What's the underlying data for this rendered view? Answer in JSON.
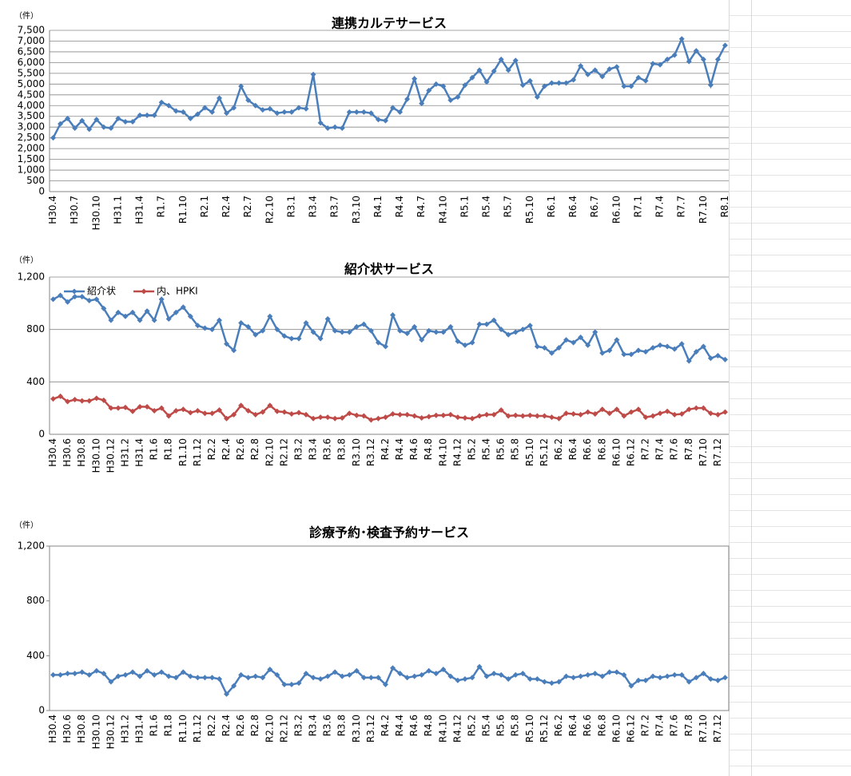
{
  "chart_data": [
    {
      "type": "line",
      "title": "連携カルテサービス",
      "ylabel": "（件）",
      "categories": [
        "H30.4",
        null,
        null,
        "H30.7",
        null,
        null,
        "H30.10",
        null,
        null,
        "H31.1",
        null,
        null,
        "H31.4",
        null,
        null,
        "R1.7",
        null,
        null,
        "R1.10",
        null,
        null,
        "R2.1",
        null,
        null,
        "R2.4",
        null,
        null,
        "R2.7",
        null,
        null,
        "R2.10",
        null,
        null,
        "R3.1",
        null,
        null,
        "R3.4",
        null,
        null,
        "R3.7",
        null,
        null,
        "R3.10",
        null,
        null,
        "R4.1",
        null,
        null,
        "R4.4",
        null,
        null,
        "R4.7",
        null,
        null,
        "R4.10",
        null,
        null,
        "R5.1",
        null,
        null,
        "R5.4",
        null,
        null,
        "R5.7",
        null,
        null,
        "R5.10",
        null,
        null,
        "R6.1",
        null,
        null,
        "R6.4",
        null,
        null,
        "R6.7",
        null,
        null,
        "R6.10",
        null,
        null,
        "R7.1",
        null,
        null,
        "R7.4",
        null,
        null,
        "R7.7",
        null,
        null,
        "R7.10",
        null,
        null,
        "R8.1"
      ],
      "values": [
        2500,
        3150,
        3400,
        2950,
        3300,
        2900,
        3350,
        3000,
        2950,
        3400,
        3250,
        3250,
        3550,
        3550,
        3550,
        4150,
        4000,
        3750,
        3700,
        3400,
        3600,
        3900,
        3700,
        4350,
        3650,
        3900,
        4900,
        4250,
        4000,
        3800,
        3850,
        3650,
        3700,
        3700,
        3900,
        3850,
        5450,
        3200,
        2950,
        3000,
        2950,
        3700,
        3700,
        3700,
        3650,
        3350,
        3300,
        3900,
        3700,
        4300,
        5250,
        4100,
        4700,
        5000,
        4900,
        4250,
        4400,
        4950,
        5300,
        5650,
        5100,
        5600,
        6150,
        5650,
        6100,
        4950,
        5150,
        4400,
        4900,
        5050,
        5050,
        5050,
        5200,
        5850,
        5450,
        5650,
        5350,
        5700,
        5800,
        4900,
        4900,
        5300,
        5150,
        5950,
        5900,
        6150,
        6350,
        7100,
        6050,
        6550,
        6150,
        4950,
        6150,
        6800
      ],
      "color": "#4a7ebb",
      "ylim": [
        0,
        7500
      ],
      "yticks": [
        0,
        500,
        {
          "value": 1000,
          "label": "1,000"
        },
        {
          "value": 1500,
          "label": "1,500"
        },
        {
          "value": 2000,
          "label": "2,000"
        },
        {
          "value": 2500,
          "label": "2,500"
        },
        {
          "value": 3000,
          "label": "3,000"
        },
        {
          "value": 3500,
          "label": "3,500"
        },
        {
          "value": 4000,
          "label": "4,000"
        },
        {
          "value": 4500,
          "label": "4,500"
        },
        {
          "value": 5000,
          "label": "5,000"
        },
        {
          "value": 5500,
          "label": "5,500"
        },
        {
          "value": 6000,
          "label": "6,000"
        },
        {
          "value": 6500,
          "label": "6,500"
        },
        {
          "value": 7000,
          "label": "7,000"
        },
        {
          "value": 7500,
          "label": "7,500"
        }
      ],
      "grid": true
    },
    {
      "type": "line",
      "title": "紹介状サービス",
      "ylabel": "（件）",
      "categories": [
        "H30.4",
        null,
        "H30.6",
        null,
        "H30.8",
        null,
        "H30.10",
        null,
        "H30.12",
        null,
        "H31.2",
        null,
        "H31.4",
        null,
        "R1.6",
        null,
        "R1.8",
        null,
        "R1.10",
        null,
        "R1.12",
        null,
        "R2.2",
        null,
        "R2.4",
        null,
        "R2.6",
        null,
        "R2.8",
        null,
        "R2.10",
        null,
        "R2.12",
        null,
        "R3.2",
        null,
        "R3.4",
        null,
        "R3.6",
        null,
        "R3.8",
        null,
        "R3.10",
        null,
        "R3.12",
        null,
        "R4.2",
        null,
        "R4.4",
        null,
        "R4.6",
        null,
        "R4.8",
        null,
        "R4.10",
        null,
        "R4.12",
        null,
        "R5.2",
        null,
        "R5.4",
        null,
        "R5.6",
        null,
        "R5.8",
        null,
        "R5.10",
        null,
        "R5.12",
        null,
        "R6.2",
        null,
        "R6.4",
        null,
        "R6.6",
        null,
        "R6.8",
        null,
        "R6.10",
        null,
        "R6.12",
        null,
        "R7.2",
        null,
        "R7.4",
        null,
        "R7.6",
        null,
        "R7.8",
        null,
        "R7.10",
        null,
        "R7.12",
        null
      ],
      "series": [
        {
          "name": "紹介状",
          "color": "#4a7ebb",
          "values": [
            1030,
            1060,
            1010,
            1050,
            1050,
            1020,
            1030,
            960,
            870,
            930,
            900,
            930,
            870,
            940,
            870,
            1030,
            880,
            930,
            970,
            900,
            830,
            810,
            800,
            870,
            690,
            640,
            850,
            820,
            760,
            790,
            900,
            800,
            750,
            730,
            730,
            850,
            780,
            730,
            880,
            790,
            780,
            780,
            820,
            840,
            790,
            700,
            670,
            910,
            790,
            770,
            820,
            720,
            790,
            780,
            780,
            820,
            710,
            680,
            700,
            840,
            840,
            870,
            800,
            760,
            780,
            800,
            830,
            670,
            660,
            620,
            660,
            720,
            700,
            740,
            680,
            780,
            620,
            640,
            720,
            610,
            610,
            640,
            630,
            660,
            680,
            670,
            650,
            690,
            560,
            630,
            670,
            580,
            600,
            570
          ]
        },
        {
          "name": "内、HPKI",
          "color": "#be4b48",
          "values": [
            270,
            290,
            250,
            265,
            255,
            255,
            275,
            260,
            200,
            200,
            205,
            175,
            210,
            210,
            180,
            200,
            140,
            180,
            190,
            165,
            180,
            160,
            160,
            185,
            120,
            150,
            220,
            180,
            150,
            170,
            220,
            175,
            170,
            155,
            165,
            150,
            120,
            130,
            130,
            120,
            125,
            160,
            145,
            140,
            110,
            120,
            130,
            155,
            150,
            150,
            140,
            125,
            135,
            145,
            145,
            150,
            130,
            125,
            120,
            140,
            150,
            150,
            185,
            140,
            145,
            140,
            145,
            140,
            140,
            130,
            120,
            160,
            155,
            150,
            170,
            155,
            190,
            160,
            190,
            140,
            170,
            190,
            130,
            140,
            160,
            175,
            150,
            155,
            190,
            200,
            200,
            160,
            150,
            170
          ]
        }
      ],
      "legend": "top-left",
      "ylim": [
        0,
        1200
      ],
      "yticks": [
        0,
        400,
        800,
        {
          "value": 1200,
          "label": "1,200"
        }
      ],
      "grid": true
    },
    {
      "type": "line",
      "title": "診療予約･検査予約サービス",
      "ylabel": "（件）",
      "categories": [
        "H30.4",
        null,
        "H30.6",
        null,
        "H30.8",
        null,
        "H30.10",
        null,
        "H30.12",
        null,
        "H31.2",
        null,
        "H31.4",
        null,
        "R1.6",
        null,
        "R1.8",
        null,
        "R1.10",
        null,
        "R1.12",
        null,
        "R2.2",
        null,
        "R2.4",
        null,
        "R2.6",
        null,
        "R2.8",
        null,
        "R2.10",
        null,
        "R2.12",
        null,
        "R3.2",
        null,
        "R3.4",
        null,
        "R3.6",
        null,
        "R3.8",
        null,
        "R3.10",
        null,
        "R3.12",
        null,
        "R4.2",
        null,
        "R4.4",
        null,
        "R4.6",
        null,
        "R4.8",
        null,
        "R4.10",
        null,
        "R4.12",
        null,
        "R5.2",
        null,
        "R5.4",
        null,
        "R5.6",
        null,
        "R5.8",
        null,
        "R5.10",
        null,
        "R5.12",
        null,
        "R6.2",
        null,
        "R6.4",
        null,
        "R6.6",
        null,
        "R6.8",
        null,
        "R6.10",
        null,
        "R6.12",
        null,
        "R7.2",
        null,
        "R7.4",
        null,
        "R7.6",
        null,
        "R7.8",
        null,
        "R7.10",
        null,
        "R7.12",
        null
      ],
      "values": [
        260,
        260,
        270,
        270,
        280,
        260,
        290,
        270,
        210,
        250,
        260,
        280,
        250,
        290,
        260,
        280,
        250,
        240,
        280,
        250,
        240,
        240,
        240,
        230,
        120,
        180,
        260,
        240,
        250,
        240,
        300,
        260,
        190,
        190,
        200,
        270,
        240,
        230,
        250,
        280,
        250,
        260,
        290,
        240,
        240,
        240,
        190,
        310,
        270,
        240,
        250,
        260,
        290,
        270,
        300,
        250,
        220,
        230,
        240,
        320,
        250,
        270,
        260,
        230,
        260,
        270,
        230,
        230,
        210,
        200,
        210,
        250,
        240,
        250,
        260,
        270,
        250,
        280,
        280,
        260,
        180,
        220,
        220,
        250,
        240,
        250,
        260,
        260,
        210,
        240,
        270,
        230,
        220,
        240
      ],
      "color": "#4a7ebb",
      "ylim": [
        0,
        1200
      ],
      "yticks": [
        0,
        400,
        800,
        {
          "value": 1200,
          "label": "1,200"
        }
      ],
      "grid": false
    }
  ]
}
